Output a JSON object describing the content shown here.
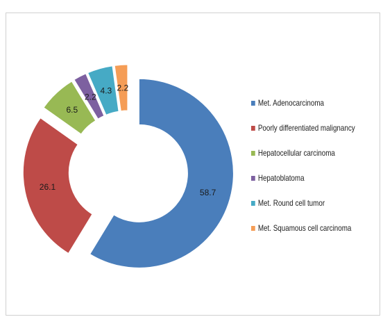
{
  "chart_data": {
    "type": "pie",
    "variant": "exploded-doughnut",
    "title": "",
    "categories": [
      "Met. Adenocarcinoma",
      "Poorly differentiated malignancy",
      "Hepatocellular carcinoma",
      "Hepatoblatoma",
      "Met. Round cell tumor",
      "Met. Squamous cell carcinoma"
    ],
    "values": [
      58.7,
      26.1,
      6.5,
      2.2,
      4.3,
      2.2
    ],
    "data_labels": [
      "58.7",
      "26.1",
      "6.5",
      "2.2",
      "4.3",
      "2.2"
    ],
    "colors": [
      "#4a7ebb",
      "#be4b48",
      "#98b954",
      "#7d60a0",
      "#46aac5",
      "#f59d56"
    ],
    "legend_position": "right",
    "grid": false
  }
}
